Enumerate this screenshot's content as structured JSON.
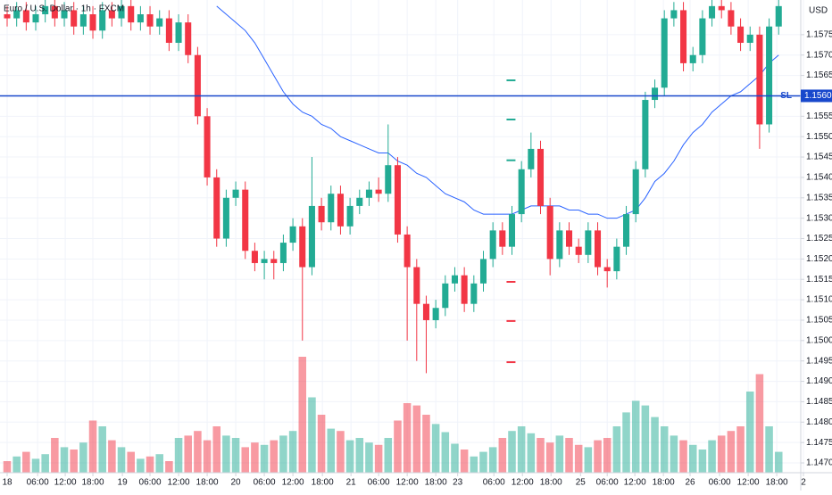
{
  "chart_data": {
    "type": "candlestick",
    "title": "Euro / U.S. Dollar · 1h · FXCM",
    "y_unit": "USD",
    "up_color": "#22ab94",
    "down_color": "#f23645",
    "ma_color": "#2962ff",
    "grid": true,
    "xlim": [
      -0.75,
      83.32
    ],
    "ylim": [
      1.14676,
      1.15835
    ],
    "volume_ylim": [
      0,
      100
    ],
    "xticks": [
      {
        "value": 0,
        "label": "18"
      },
      {
        "value": 3.2,
        "label": "06:00"
      },
      {
        "value": 6.1,
        "label": "12:00"
      },
      {
        "value": 9.0,
        "label": "18:00"
      },
      {
        "value": 12.1,
        "label": "19"
      },
      {
        "value": 15.0,
        "label": "06:00"
      },
      {
        "value": 18.0,
        "label": "12:00"
      },
      {
        "value": 21.0,
        "label": "18:00"
      },
      {
        "value": 24.0,
        "label": "20"
      },
      {
        "value": 27.0,
        "label": "06:00"
      },
      {
        "value": 30.0,
        "label": "12:00"
      },
      {
        "value": 33.1,
        "label": "18:00"
      },
      {
        "value": 36.1,
        "label": "21"
      },
      {
        "value": 39.0,
        "label": "06:00"
      },
      {
        "value": 42.0,
        "label": "12:00"
      },
      {
        "value": 45.0,
        "label": "18:00"
      },
      {
        "value": 47.3,
        "label": "23"
      },
      {
        "value": 51.1,
        "label": "06:00"
      },
      {
        "value": 54.1,
        "label": "12:00"
      },
      {
        "value": 57.1,
        "label": "18:00"
      },
      {
        "value": 60.2,
        "label": "25"
      },
      {
        "value": 63.0,
        "label": "06:00"
      },
      {
        "value": 65.9,
        "label": "12:00"
      },
      {
        "value": 68.9,
        "label": "18:00"
      },
      {
        "value": 71.7,
        "label": "26"
      },
      {
        "value": 74.8,
        "label": "06:00"
      },
      {
        "value": 77.8,
        "label": "12:00"
      },
      {
        "value": 80.8,
        "label": "18:00"
      },
      {
        "value": 83.6,
        "label": "2"
      }
    ],
    "yticks": [
      {
        "value": 1.1575,
        "label": "1.15750"
      },
      {
        "value": 1.157,
        "label": "1.15700"
      },
      {
        "value": 1.1565,
        "label": "1.15650"
      },
      {
        "value": 1.1555,
        "label": "1.15550"
      },
      {
        "value": 1.155,
        "label": "1.15500"
      },
      {
        "value": 1.1545,
        "label": "1.15450"
      },
      {
        "value": 1.154,
        "label": "1.15400"
      },
      {
        "value": 1.1535,
        "label": "1.15350"
      },
      {
        "value": 1.153,
        "label": "1.15300"
      },
      {
        "value": 1.1525,
        "label": "1.15250"
      },
      {
        "value": 1.152,
        "label": "1.15200"
      },
      {
        "value": 1.1515,
        "label": "1.15150"
      },
      {
        "value": 1.151,
        "label": "1.15100"
      },
      {
        "value": 1.1505,
        "label": "1.15050"
      },
      {
        "value": 1.15,
        "label": "1.15000"
      },
      {
        "value": 1.1495,
        "label": "1.14950"
      },
      {
        "value": 1.149,
        "label": "1.14900"
      },
      {
        "value": 1.1485,
        "label": "1.14850"
      },
      {
        "value": 1.148,
        "label": "1.14800"
      },
      {
        "value": 1.1475,
        "label": "1.14750"
      },
      {
        "value": 1.147,
        "label": "1.14700"
      }
    ],
    "open": [
      1.158,
      1.1579,
      1.1581,
      1.1578,
      1.158,
      1.1582,
      1.1579,
      1.1581,
      1.1577,
      1.158,
      1.1576,
      1.1581,
      1.1579,
      1.1582,
      1.1578,
      1.158,
      1.1577,
      1.1579,
      1.1573,
      1.1578,
      1.157,
      1.1555,
      1.154,
      1.1525,
      1.1535,
      1.1537,
      1.1522,
      1.1519,
      1.152,
      1.1519,
      1.1524,
      1.1528,
      1.1518,
      1.1533,
      1.1529,
      1.1536,
      1.1528,
      1.1533,
      1.1535,
      1.1537,
      1.1536,
      1.1543,
      1.1526,
      1.1518,
      1.1509,
      1.1505,
      1.1508,
      1.1514,
      1.1516,
      1.1509,
      1.1514,
      1.152,
      1.1527,
      1.1523,
      1.1531,
      1.1542,
      1.1547,
      1.1533,
      1.152,
      1.1527,
      1.1523,
      1.1521,
      1.1527,
      1.1518,
      1.1517,
      1.1523,
      1.1531,
      1.1542,
      1.1559,
      1.1562,
      1.1579,
      1.1581,
      1.1568,
      1.157,
      1.1579,
      1.1582,
      1.1581,
      1.1577,
      1.1573,
      1.1575,
      1.1553,
      1.1577
    ],
    "high": [
      1.1582,
      1.1583,
      1.1583,
      1.1582,
      1.1584,
      1.1584,
      1.1583,
      1.1583,
      1.1582,
      1.1582,
      1.1583,
      1.1583,
      1.1584,
      1.1584,
      1.1582,
      1.1582,
      1.1581,
      1.1581,
      1.158,
      1.158,
      1.1572,
      1.1557,
      1.1542,
      1.1537,
      1.1539,
      1.1539,
      1.1524,
      1.1522,
      1.1522,
      1.1526,
      1.153,
      1.153,
      1.1545,
      1.1535,
      1.1538,
      1.1538,
      1.1535,
      1.1537,
      1.1539,
      1.154,
      1.1553,
      1.1545,
      1.1528,
      1.152,
      1.1511,
      1.151,
      1.1516,
      1.1518,
      1.1518,
      1.1516,
      1.1522,
      1.1529,
      1.1529,
      1.1533,
      1.1544,
      1.1551,
      1.1549,
      1.1535,
      1.1529,
      1.1529,
      1.1525,
      1.1529,
      1.1529,
      1.152,
      1.1525,
      1.1533,
      1.1544,
      1.1561,
      1.1564,
      1.1581,
      1.1583,
      1.1583,
      1.1572,
      1.1581,
      1.1584,
      1.1584,
      1.1583,
      1.1579,
      1.1577,
      1.1577,
      1.1579,
      1.1584
    ],
    "low": [
      1.1577,
      1.1577,
      1.1576,
      1.1576,
      1.1578,
      1.1577,
      1.1577,
      1.1575,
      1.1575,
      1.1574,
      1.1574,
      1.1577,
      1.1577,
      1.1576,
      1.1576,
      1.1575,
      1.1575,
      1.1571,
      1.1571,
      1.1568,
      1.1553,
      1.1538,
      1.1523,
      1.1523,
      1.1533,
      1.152,
      1.1517,
      1.1515,
      1.1515,
      1.1517,
      1.1522,
      1.15,
      1.1516,
      1.1527,
      1.1527,
      1.1526,
      1.1526,
      1.1531,
      1.1533,
      1.1534,
      1.1534,
      1.1524,
      1.15,
      1.1495,
      1.1492,
      1.1503,
      1.1506,
      1.1512,
      1.1507,
      1.1507,
      1.1512,
      1.1518,
      1.1521,
      1.1521,
      1.1529,
      1.154,
      1.1531,
      1.1516,
      1.1518,
      1.1521,
      1.1519,
      1.1519,
      1.1516,
      1.1513,
      1.1515,
      1.1521,
      1.1529,
      1.154,
      1.1557,
      1.156,
      1.1577,
      1.1566,
      1.1566,
      1.1568,
      1.1577,
      1.1579,
      1.1575,
      1.1571,
      1.1571,
      1.1547,
      1.1551,
      1.1575
    ],
    "close": [
      1.1579,
      1.1581,
      1.1578,
      1.158,
      1.1582,
      1.1579,
      1.1581,
      1.1577,
      1.158,
      1.1576,
      1.1581,
      1.1579,
      1.1582,
      1.1578,
      1.158,
      1.1577,
      1.1579,
      1.1573,
      1.1578,
      1.157,
      1.1555,
      1.154,
      1.1525,
      1.1535,
      1.1537,
      1.1522,
      1.1519,
      1.152,
      1.1519,
      1.1524,
      1.1528,
      1.1518,
      1.1533,
      1.1529,
      1.1536,
      1.1528,
      1.1533,
      1.1535,
      1.1537,
      1.1536,
      1.1543,
      1.1526,
      1.1518,
      1.1509,
      1.1505,
      1.1508,
      1.1514,
      1.1516,
      1.1509,
      1.1514,
      1.152,
      1.1527,
      1.1523,
      1.1531,
      1.1542,
      1.1547,
      1.1533,
      1.152,
      1.1527,
      1.1523,
      1.1521,
      1.1527,
      1.1518,
      1.1517,
      1.1523,
      1.1531,
      1.1542,
      1.1559,
      1.1562,
      1.1579,
      1.1581,
      1.1568,
      1.157,
      1.1579,
      1.1582,
      1.1581,
      1.1577,
      1.1573,
      1.1575,
      1.1553,
      1.1577,
      1.1582
    ],
    "volume": [
      10,
      14,
      18,
      12,
      16,
      30,
      22,
      20,
      26,
      45,
      40,
      28,
      22,
      18,
      12,
      14,
      16,
      10,
      30,
      32,
      36,
      28,
      40,
      32,
      30,
      22,
      26,
      24,
      28,
      32,
      36,
      100,
      65,
      50,
      38,
      36,
      28,
      30,
      26,
      24,
      30,
      45,
      60,
      58,
      50,
      42,
      35,
      25,
      20,
      14,
      18,
      22,
      30,
      36,
      40,
      34,
      30,
      26,
      32,
      30,
      24,
      22,
      28,
      30,
      40,
      52,
      62,
      58,
      48,
      40,
      32,
      28,
      24,
      20,
      28,
      32,
      36,
      40,
      70,
      85,
      40,
      18
    ],
    "ma": [
      null,
      null,
      null,
      null,
      null,
      null,
      null,
      null,
      null,
      null,
      null,
      null,
      null,
      null,
      null,
      null,
      null,
      null,
      null,
      null,
      null,
      null,
      1.1582,
      1.158,
      1.1578,
      1.1576,
      1.1573,
      1.1569,
      1.1565,
      1.1561,
      1.1558,
      1.1556,
      1.1555,
      1.1553,
      1.1552,
      1.155,
      1.1549,
      1.1548,
      1.1547,
      1.1546,
      1.1546,
      1.1544,
      1.1543,
      1.1541,
      1.154,
      1.1538,
      1.1536,
      1.1535,
      1.1534,
      1.1532,
      1.1531,
      1.1531,
      1.1531,
      1.1531,
      1.1532,
      1.1533,
      1.1533,
      1.1533,
      1.1533,
      1.1532,
      1.1532,
      1.1531,
      1.1531,
      1.153,
      1.153,
      1.1531,
      1.1532,
      1.1535,
      1.1539,
      1.1541,
      1.1544,
      1.1548,
      1.1551,
      1.1553,
      1.1556,
      1.1558,
      1.156,
      1.1561,
      1.1563,
      1.1565,
      1.1568,
      1.157
    ],
    "sl": {
      "name": "SL",
      "price": {
        "value": 1.156,
        "label": "1.15600"
      },
      "color": "#1848cc"
    },
    "markers": {
      "x": 52.9,
      "groups": [
        {
          "color": "#22ab94",
          "values": [
            1.15638,
            1.15542,
            1.15442
          ]
        },
        {
          "color": "#f23645",
          "values": [
            1.15144,
            1.15048,
            1.14947
          ]
        }
      ]
    }
  }
}
